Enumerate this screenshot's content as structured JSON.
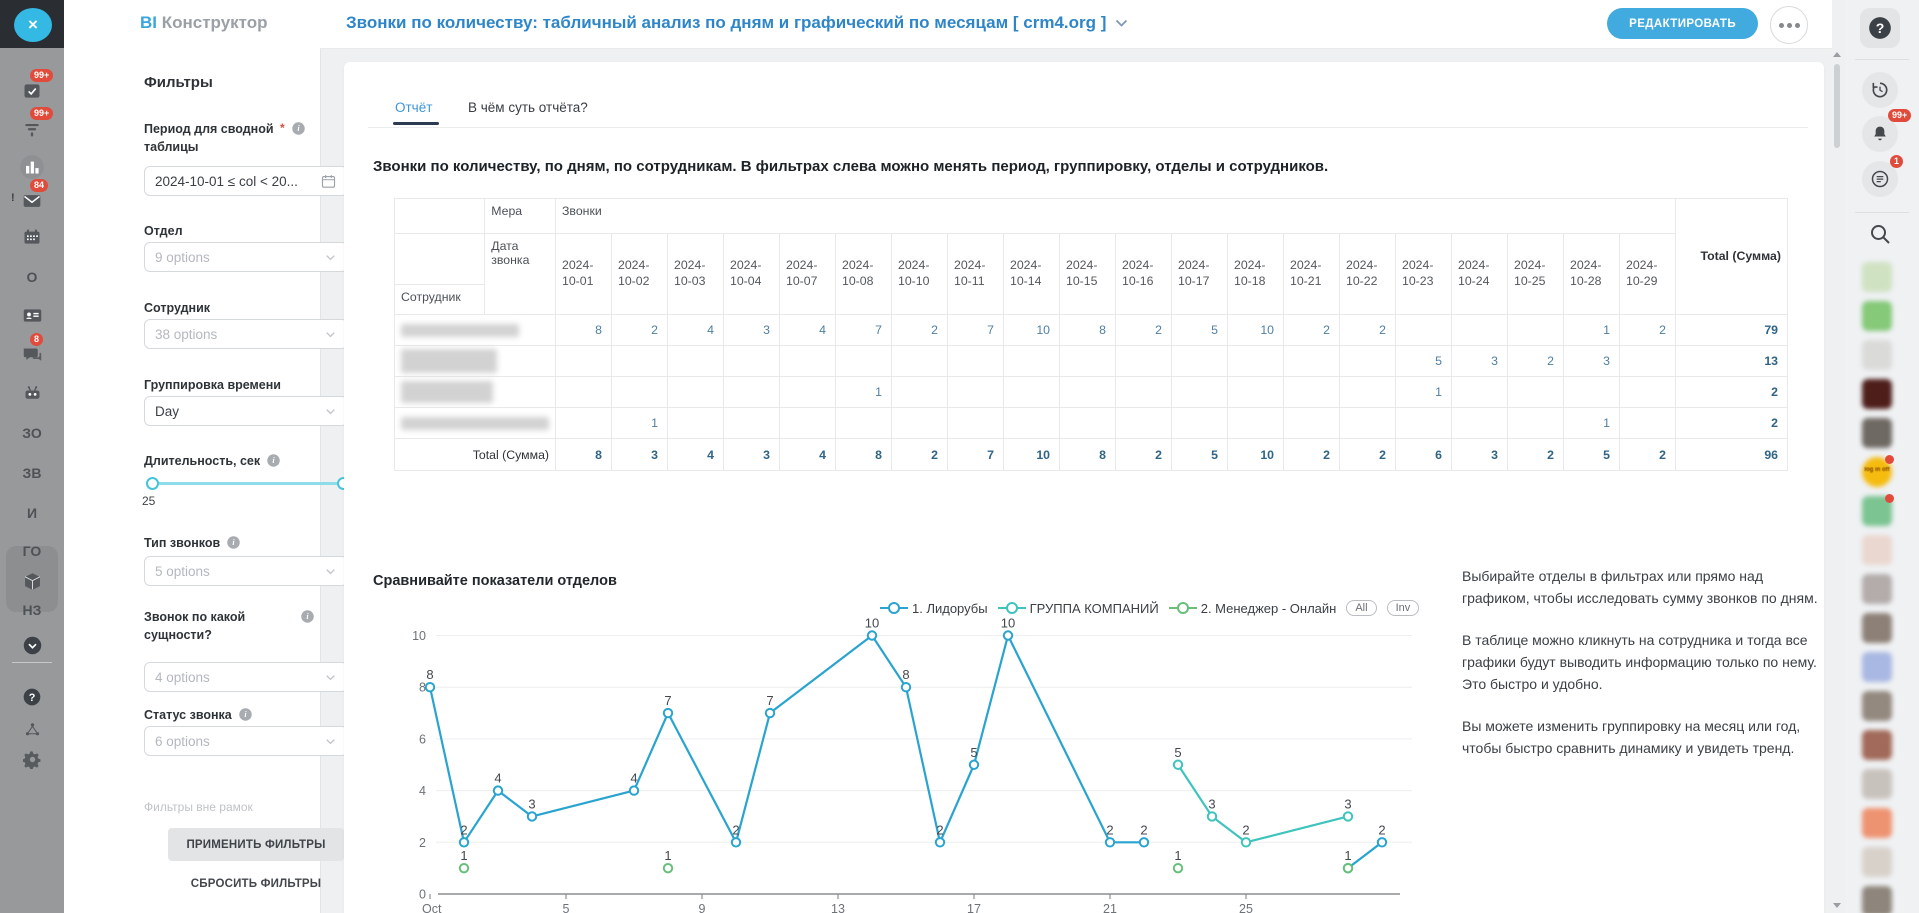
{
  "app": {
    "logo_accent": "BI",
    "logo_text": "Конструктор"
  },
  "header": {
    "title": "Звонки по количеству: табличный анализ по дням и графический по месяцам [ crm4.org ]",
    "edit_button": "РЕДАКТИРОВАТЬ"
  },
  "left_rail": {
    "items": [
      {
        "icon": "check-square",
        "badge": "99+"
      },
      {
        "icon": "filter",
        "badge": "99+"
      },
      {
        "icon": "bar-chart"
      },
      {
        "icon": "mail",
        "badge": "84",
        "alert": "!"
      },
      {
        "icon": "calendar"
      },
      {
        "text": "O"
      },
      {
        "icon": "id-card"
      },
      {
        "icon": "chat",
        "badge": "8"
      },
      {
        "icon": "robot"
      },
      {
        "text": "ЗО"
      },
      {
        "text": "ЗВ"
      },
      {
        "text": "И"
      },
      {
        "text": "ГО"
      },
      {
        "icon": "box",
        "selected": true
      },
      {
        "text": "НЗ",
        "selected": true
      },
      {
        "icon": "chevron-circle"
      }
    ],
    "footer_items": [
      {
        "icon": "help-circle"
      },
      {
        "icon": "nodes"
      },
      {
        "icon": "gear"
      }
    ]
  },
  "filters": {
    "title": "Фильтры",
    "items": [
      {
        "label": "Период для сводной таблицы",
        "required": true,
        "info": true,
        "type": "date",
        "value": "2024-10-01 ≤ col < 20..."
      },
      {
        "label": "Отдел",
        "type": "select",
        "value": "9 options"
      },
      {
        "label": "Сотрудник",
        "type": "select",
        "value": "38 options"
      },
      {
        "label": "Группировка времени",
        "type": "select",
        "value": "Day",
        "chosen": true
      },
      {
        "label": "Длительность, сек",
        "info": true,
        "type": "slider",
        "value": "25"
      },
      {
        "label": "Тип звонков",
        "info": true,
        "type": "select",
        "value": "5 options"
      },
      {
        "label": "Звонок по какой сущности?",
        "info": true,
        "type": "select",
        "value": "4 options"
      },
      {
        "label": "Статус звонка",
        "info": true,
        "type": "select",
        "value": "6 options"
      }
    ],
    "out_of_scope": "Фильтры вне рамок",
    "apply": "ПРИМЕНИТЬ ФИЛЬТРЫ",
    "reset": "СБРОСИТЬ ФИЛЬТРЫ"
  },
  "report": {
    "tabs": [
      {
        "label": "Отчёт"
      },
      {
        "label": "В чём суть отчёта?"
      }
    ],
    "description": "Звонки по количеству, по дням, по сотрудникам. В фильтрах слева можно менять период, группировку, отделы и сотрудников.",
    "table": {
      "measure_label": "Мера",
      "measure_value": "Звонки",
      "date_label": "Дата звонка",
      "row_header": "Сотрудник",
      "total_label": "Total (Сумма)",
      "dates": [
        "2024-10-01",
        "2024-10-02",
        "2024-10-03",
        "2024-10-04",
        "2024-10-07",
        "2024-10-08",
        "2024-10-10",
        "2024-10-11",
        "2024-10-14",
        "2024-10-15",
        "2024-10-16",
        "2024-10-17",
        "2024-10-18",
        "2024-10-21",
        "2024-10-22",
        "2024-10-23",
        "2024-10-24",
        "2024-10-25",
        "2024-10-28",
        "2024-10-29"
      ],
      "rows": [
        {
          "name_redacted": true,
          "values": [
            8,
            2,
            4,
            3,
            4,
            7,
            2,
            7,
            10,
            8,
            2,
            5,
            10,
            2,
            2,
            null,
            null,
            null,
            1,
            2
          ],
          "total": 79
        },
        {
          "name_redacted": true,
          "values": [
            null,
            null,
            null,
            null,
            null,
            null,
            null,
            null,
            null,
            null,
            null,
            null,
            null,
            null,
            null,
            5,
            3,
            2,
            3,
            null
          ],
          "total": 13
        },
        {
          "name_redacted": true,
          "values": [
            null,
            null,
            null,
            null,
            null,
            1,
            null,
            null,
            null,
            null,
            null,
            null,
            null,
            null,
            null,
            1,
            null,
            null,
            null,
            null
          ],
          "total": 2
        },
        {
          "name_redacted": true,
          "values": [
            null,
            1,
            null,
            null,
            null,
            null,
            null,
            null,
            null,
            null,
            null,
            null,
            null,
            null,
            null,
            null,
            null,
            null,
            1,
            null
          ],
          "total": 2
        }
      ],
      "totals": [
        8,
        3,
        4,
        3,
        4,
        8,
        2,
        7,
        10,
        8,
        2,
        5,
        10,
        2,
        2,
        6,
        3,
        2,
        5,
        2
      ],
      "grand_total": 96
    },
    "chart_title": "Сравнивайте показатели отделов",
    "legend_buttons": [
      "All",
      "Inv"
    ],
    "sidenote": [
      "Выбирайте отделы в фильтрах или прямо над графиком, чтобы исследовать сумму звонков по дням.",
      "В таблице можно кликнуть на сотрудника и тогда все графики будут выводить информацию только по нему.\nЭто быстро и удобно.",
      "Вы можете изменить группировку на месяц или год, чтобы быстро сравнить динамику и увидеть тренд."
    ]
  },
  "chart_data": {
    "type": "line",
    "title": "Сравнивайте показатели отделов",
    "xlabel": "",
    "ylabel": "",
    "x": {
      "unit": "day of October 2024",
      "domain": [
        1,
        30
      ],
      "ticks": [
        {
          "day": 1,
          "label": "Oct"
        },
        {
          "day": 5,
          "label": "5"
        },
        {
          "day": 9,
          "label": "9"
        },
        {
          "day": 13,
          "label": "13"
        },
        {
          "day": 17,
          "label": "17"
        },
        {
          "day": 21,
          "label": "21"
        },
        {
          "day": 25,
          "label": "25"
        }
      ]
    },
    "y": {
      "range": [
        0,
        10
      ],
      "ticks": [
        0,
        2,
        4,
        6,
        8,
        10
      ]
    },
    "grid": true,
    "legend_position": "top-right",
    "series": [
      {
        "name": "1. Лидорубы",
        "color": "#29a3cf",
        "points": [
          [
            1,
            8
          ],
          [
            2,
            2
          ],
          [
            3,
            4
          ],
          [
            4,
            3
          ],
          [
            7,
            4
          ],
          [
            8,
            7
          ],
          [
            10,
            2
          ],
          [
            11,
            7
          ],
          [
            14,
            10
          ],
          [
            15,
            8
          ],
          [
            16,
            2
          ],
          [
            17,
            5
          ],
          [
            18,
            10
          ],
          [
            21,
            2
          ],
          [
            22,
            2
          ],
          [
            28,
            1
          ],
          [
            29,
            2
          ]
        ],
        "segments": [
          [
            0,
            14
          ],
          [
            15,
            16
          ]
        ]
      },
      {
        "name": "ГРУППА КОМПАНИЙ",
        "color": "#3fc4bd",
        "points": [
          [
            23,
            5
          ],
          [
            24,
            3
          ],
          [
            25,
            2
          ],
          [
            28,
            3
          ]
        ],
        "segments": [
          [
            0,
            3
          ]
        ]
      },
      {
        "name": "2. Менеджер - Онлайн",
        "color": "#68bf7b",
        "points": [
          [
            2,
            1
          ],
          [
            8,
            1
          ],
          [
            23,
            1
          ],
          [
            28,
            1
          ]
        ],
        "segments": []
      }
    ]
  },
  "right_rail": {
    "notifications_badge": "99+",
    "activity_badge": "1",
    "extensions": [
      {
        "color": "#cfe2c2"
      },
      {
        "color": "#85c979"
      },
      {
        "color": "#dadad8"
      },
      {
        "color": "#4e1e1a"
      },
      {
        "color": "#6f6963"
      },
      {
        "color": "#f5bb0e",
        "shape": "circle",
        "label": "log in off",
        "dot": true
      },
      {
        "color": "#7cc492",
        "dot": true
      },
      {
        "color": "#ead7cf"
      },
      {
        "color": "#b3acab"
      },
      {
        "color": "#8d8177"
      },
      {
        "color": "#a9b8e2"
      },
      {
        "color": "#93897f"
      },
      {
        "color": "#a16a5a"
      },
      {
        "color": "#c8c2bc"
      },
      {
        "color": "#ee9371"
      },
      {
        "color": "#d8d1ca"
      },
      {
        "color": "#8e867c"
      }
    ]
  }
}
